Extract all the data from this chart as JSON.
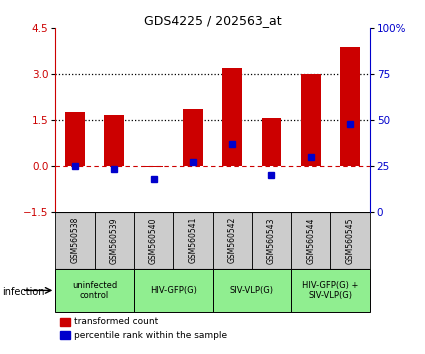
{
  "title": "GDS4225 / 202563_at",
  "samples": [
    "GSM560538",
    "GSM560539",
    "GSM560540",
    "GSM560541",
    "GSM560542",
    "GSM560543",
    "GSM560544",
    "GSM560545"
  ],
  "transformed_count": [
    1.75,
    1.65,
    -0.05,
    1.85,
    3.2,
    1.55,
    3.0,
    3.9
  ],
  "percentile_rank": [
    25,
    23,
    18,
    27,
    37,
    20,
    30,
    48
  ],
  "ylim_left": [
    -1.5,
    4.5
  ],
  "ylim_right": [
    0,
    100
  ],
  "yticks_left": [
    -1.5,
    0,
    1.5,
    3.0,
    4.5
  ],
  "yticks_right": [
    0,
    25,
    50,
    75,
    100
  ],
  "bar_color": "#cc0000",
  "dot_color": "#0000cc",
  "groups": [
    {
      "label": "uninfected\ncontrol",
      "start": 0,
      "end": 2,
      "color": "#90ee90"
    },
    {
      "label": "HIV-GFP(G)",
      "start": 2,
      "end": 4,
      "color": "#90ee90"
    },
    {
      "label": "SIV-VLP(G)",
      "start": 4,
      "end": 6,
      "color": "#90ee90"
    },
    {
      "label": "HIV-GFP(G) +\nSIV-VLP(G)",
      "start": 6,
      "end": 8,
      "color": "#90ee90"
    }
  ],
  "infection_label": "infection",
  "legend_red": "transformed count",
  "legend_blue": "percentile rank within the sample",
  "right_axis_color": "#0000cc",
  "tick_label_color_left": "#cc0000",
  "tick_label_color_right": "#0000cc",
  "bar_width": 0.5
}
